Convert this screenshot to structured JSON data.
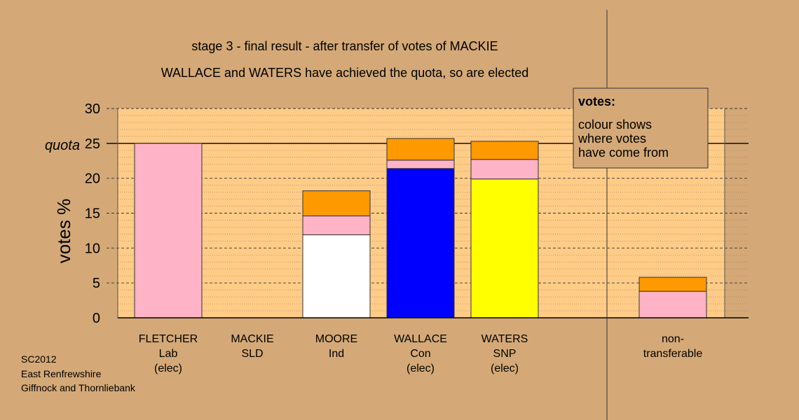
{
  "chart_data": {
    "type": "bar",
    "stacked": true,
    "title": "stage 3 - final result - after transfer of votes of MACKIE",
    "subtitle": "WALLACE and WATERS have achieved the quota, so are elected",
    "ylabel": "votes %",
    "ylim": [
      0,
      30
    ],
    "yticks": [
      0,
      5,
      10,
      15,
      20,
      25,
      30
    ],
    "quota": 25,
    "quota_label": "quota",
    "grid": true,
    "candidates": [
      {
        "name": "FLETCHER",
        "party": "Lab",
        "status": "(elec)"
      },
      {
        "name": "MACKIE",
        "party": "SLD",
        "status": ""
      },
      {
        "name": "MOORE",
        "party": "Ind",
        "status": ""
      },
      {
        "name": "WALLACE",
        "party": "Con",
        "status": "(elec)"
      },
      {
        "name": "WATERS",
        "party": "SNP",
        "status": "(elec)"
      },
      {
        "name": "",
        "party": "",
        "status": ""
      },
      {
        "name": "non-",
        "party": "transferable",
        "status": ""
      }
    ],
    "stacks": [
      [
        {
          "value": 25.0,
          "color": "#ffb3c6"
        }
      ],
      [],
      [
        {
          "value": 11.9,
          "color": "#ffffff"
        },
        {
          "value": 2.7,
          "color": "#ffb3c6"
        },
        {
          "value": 3.6,
          "color": "#ff9900"
        }
      ],
      [
        {
          "value": 21.4,
          "color": "#0000ff"
        },
        {
          "value": 1.2,
          "color": "#ffb3c6"
        },
        {
          "value": 3.1,
          "color": "#ff9900"
        }
      ],
      [
        {
          "value": 19.9,
          "color": "#ffff00"
        },
        {
          "value": 2.8,
          "color": "#ffb3c6"
        },
        {
          "value": 2.6,
          "color": "#ff9900"
        }
      ],
      [],
      [
        {
          "value": 3.8,
          "color": "#ffb3c6"
        },
        {
          "value": 2.0,
          "color": "#ff9900"
        }
      ]
    ],
    "legend": {
      "title": "votes:",
      "lines": [
        "colour shows",
        "where votes",
        "have come from"
      ],
      "placement": "top-right"
    },
    "background_color": "#d4a977",
    "plot_color": "#ffcc88"
  },
  "footer": {
    "lines": [
      "SC2012",
      "East Renfrewshire",
      "Giffnock and Thornliebank"
    ]
  }
}
